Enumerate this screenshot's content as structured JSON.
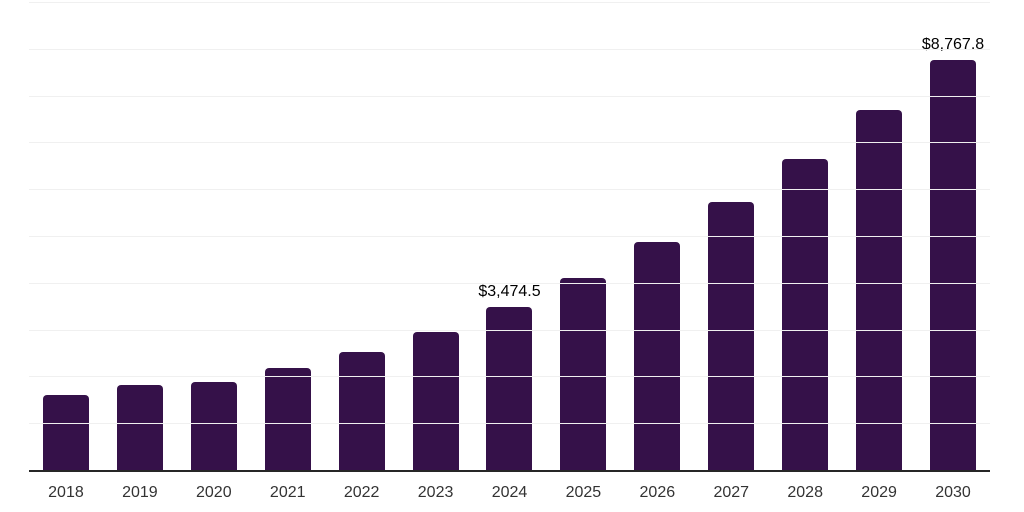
{
  "chart_data": {
    "type": "bar",
    "title": "",
    "xlabel": "",
    "ylabel": "",
    "categories": [
      "2018",
      "2019",
      "2020",
      "2021",
      "2022",
      "2023",
      "2024",
      "2025",
      "2026",
      "2027",
      "2028",
      "2029",
      "2030"
    ],
    "values": [
      1600,
      1810,
      1890,
      2180,
      2520,
      2950,
      3474.5,
      4100,
      4870,
      5720,
      6640,
      7690,
      8767.8
    ],
    "point_labels": [
      "",
      "",
      "",
      "",
      "",
      "",
      "$3,474.5",
      "",
      "",
      "",
      "",
      "",
      "$8,767.8"
    ],
    "ylim": [
      0,
      10000
    ],
    "gridline_step": 1000,
    "grid": true,
    "legend": "none",
    "y_axis_tick_labels": "hidden",
    "colors": {
      "bar": "#351149",
      "gridline": "#f0f0f0",
      "axis_line": "#262626",
      "x_tick_label": "#333333",
      "point_label": "#000000",
      "background": "#ffffff"
    }
  }
}
